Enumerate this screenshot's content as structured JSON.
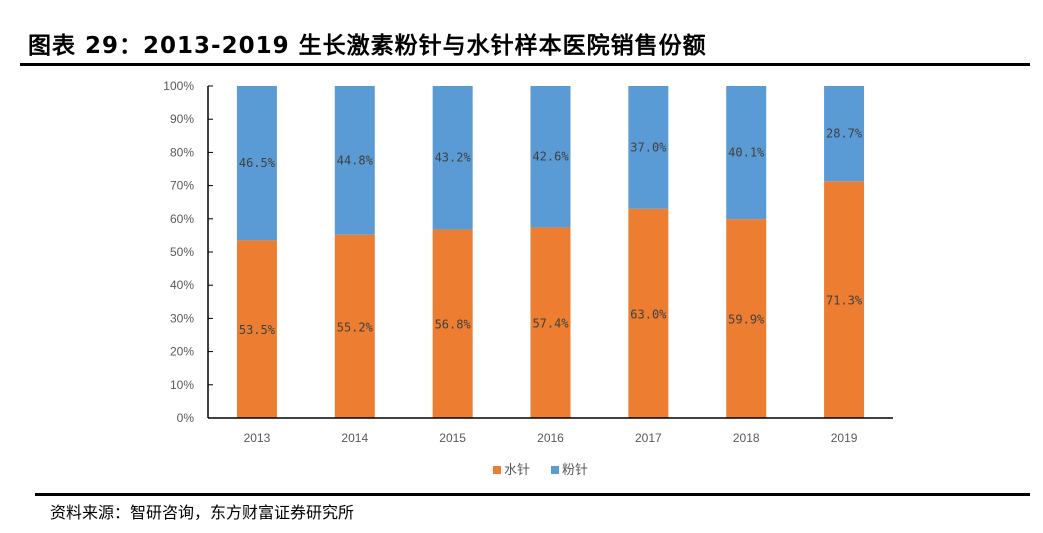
{
  "header": {
    "title": "图表 29：2013-2019 生长激素粉针与水针样本医院销售份额"
  },
  "footer": {
    "source": "资料来源：智研咨询，东方财富证券研究所"
  },
  "chart_data": {
    "type": "bar",
    "stacked": true,
    "percent": true,
    "title": "2013-2019 生长激素粉针与水针样本医院销售份额",
    "xlabel": "",
    "ylabel": "",
    "categories": [
      "2013",
      "2014",
      "2015",
      "2016",
      "2017",
      "2018",
      "2019"
    ],
    "series": [
      {
        "name": "水针",
        "color": "#ED7D31",
        "values": [
          53.5,
          55.2,
          56.8,
          57.4,
          63.0,
          59.9,
          71.3
        ],
        "labels": [
          "53.5%",
          "55.2%",
          "56.8%",
          "57.4%",
          "63.0%",
          "59.9%",
          "71.3%"
        ]
      },
      {
        "name": "粉针",
        "color": "#5B9BD5",
        "values": [
          46.5,
          44.8,
          43.2,
          42.6,
          37.0,
          40.1,
          28.7
        ],
        "labels": [
          "46.5%",
          "44.8%",
          "43.2%",
          "42.6%",
          "37.0%",
          "40.1%",
          "28.7%"
        ]
      }
    ],
    "ylim": [
      0,
      100
    ],
    "yticks": [
      "0%",
      "10%",
      "20%",
      "30%",
      "40%",
      "50%",
      "60%",
      "70%",
      "80%",
      "90%",
      "100%"
    ],
    "grid": false,
    "legend": "bottom"
  }
}
